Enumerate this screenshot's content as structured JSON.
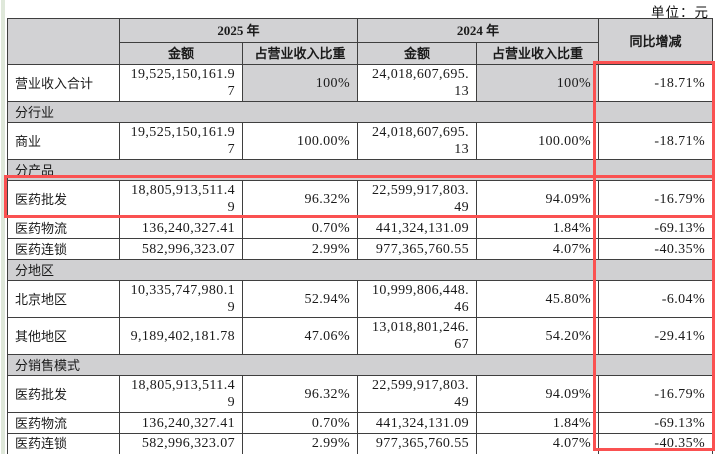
{
  "unit_label": "单位：元",
  "highlight_color": "#fa5151",
  "table": {
    "headers": {
      "y2025": "2025 年",
      "y2024": "2024 年",
      "amount": "金额",
      "pct": "占营业收入比重",
      "yoy": "同比增减"
    },
    "rows": [
      {
        "type": "data",
        "label": "营业收入合计",
        "a25": "19,525,150,161.97",
        "p25": "100%",
        "a24": "24,018,607,695.13",
        "p24": "100%",
        "yoy": "-18.71%",
        "shaded_pct": true
      },
      {
        "type": "section",
        "label": "分行业"
      },
      {
        "type": "data",
        "label": "商业",
        "a25": "19,525,150,161.97",
        "p25": "100.00%",
        "a24": "24,018,607,695.13",
        "p24": "100.00%",
        "yoy": "-18.71%"
      },
      {
        "type": "section",
        "label": "分产品"
      },
      {
        "type": "data",
        "label": "医药批发",
        "a25": "18,805,913,511.49",
        "p25": "96.32%",
        "a24": "22,599,917,803.49",
        "p24": "94.09%",
        "yoy": "-16.79%",
        "highlighted": true
      },
      {
        "type": "data",
        "label": "医药物流",
        "a25": "136,240,327.41",
        "p25": "0.70%",
        "a24": "441,324,131.09",
        "p24": "1.84%",
        "yoy": "-69.13%"
      },
      {
        "type": "data",
        "label": "医药连锁",
        "a25": "582,996,323.07",
        "p25": "2.99%",
        "a24": "977,365,760.55",
        "p24": "4.07%",
        "yoy": "-40.35%"
      },
      {
        "type": "section",
        "label": "分地区"
      },
      {
        "type": "data",
        "label": "北京地区",
        "a25": "10,335,747,980.19",
        "p25": "52.94%",
        "a24": "10,999,806,448.46",
        "p24": "45.80%",
        "yoy": "-6.04%"
      },
      {
        "type": "data",
        "label": "其他地区",
        "a25": "9,189,402,181.78",
        "p25": "47.06%",
        "a24": "13,018,801,246.67",
        "p24": "54.20%",
        "yoy": "-29.41%"
      },
      {
        "type": "section",
        "label": "分销售模式"
      },
      {
        "type": "data",
        "label": "医药批发",
        "a25": "18,805,913,511.49",
        "p25": "96.32%",
        "a24": "22,599,917,803.49",
        "p24": "94.09%",
        "yoy": "-16.79%"
      },
      {
        "type": "data",
        "label": "医药物流",
        "a25": "136,240,327.41",
        "p25": "0.70%",
        "a24": "441,324,131.09",
        "p24": "1.84%",
        "yoy": "-69.13%"
      },
      {
        "type": "data",
        "label": "医药连锁",
        "a25": "582,996,323.07",
        "p25": "2.99%",
        "a24": "977,365,760.55",
        "p24": "4.07%",
        "yoy": "-40.35%"
      }
    ]
  }
}
